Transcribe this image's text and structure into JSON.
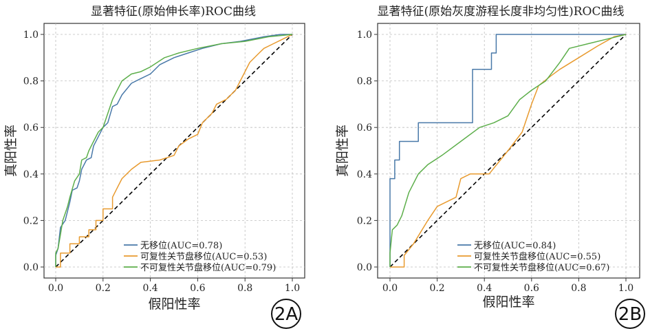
{
  "chart_data": [
    {
      "type": "line",
      "panel_tag": "2A",
      "title": "显著特征(原始伸长率)ROC曲线",
      "xlabel": "假阳性率",
      "ylabel": "真阳性率",
      "xlim": [
        0,
        1
      ],
      "ylim": [
        0,
        1
      ],
      "xticks": [
        "0.0",
        "0.2",
        "0.4",
        "0.6",
        "0.8",
        "1.0"
      ],
      "yticks": [
        "0.0",
        "0.2",
        "0.4",
        "0.6",
        "0.8",
        "1.0"
      ],
      "grid": true,
      "legend_position": "lower-right",
      "diagonal": true,
      "series": [
        {
          "name": "无移位(AUC=0.78)",
          "color": "#4878a8",
          "points": [
            [
              0,
              0
            ],
            [
              0,
              0.05
            ],
            [
              0.01,
              0.08
            ],
            [
              0.02,
              0.17
            ],
            [
              0.04,
              0.2
            ],
            [
              0.05,
              0.24
            ],
            [
              0.06,
              0.28
            ],
            [
              0.07,
              0.33
            ],
            [
              0.09,
              0.34
            ],
            [
              0.1,
              0.37
            ],
            [
              0.11,
              0.42
            ],
            [
              0.13,
              0.46
            ],
            [
              0.15,
              0.47
            ],
            [
              0.16,
              0.52
            ],
            [
              0.18,
              0.56
            ],
            [
              0.2,
              0.6
            ],
            [
              0.22,
              0.62
            ],
            [
              0.24,
              0.69
            ],
            [
              0.26,
              0.7
            ],
            [
              0.28,
              0.74
            ],
            [
              0.32,
              0.79
            ],
            [
              0.36,
              0.81
            ],
            [
              0.4,
              0.83
            ],
            [
              0.44,
              0.87
            ],
            [
              0.5,
              0.9
            ],
            [
              0.56,
              0.92
            ],
            [
              0.62,
              0.94
            ],
            [
              0.7,
              0.96
            ],
            [
              0.78,
              0.97
            ],
            [
              0.88,
              0.99
            ],
            [
              0.95,
              1.0
            ],
            [
              1.0,
              1.0
            ]
          ]
        },
        {
          "name": "可复性关节盘移位(AUC=0.53)",
          "color": "#e89a2e",
          "points": [
            [
              0,
              0
            ],
            [
              0.02,
              0
            ],
            [
              0.02,
              0.06
            ],
            [
              0.06,
              0.06
            ],
            [
              0.06,
              0.1
            ],
            [
              0.1,
              0.1
            ],
            [
              0.1,
              0.13
            ],
            [
              0.14,
              0.13
            ],
            [
              0.14,
              0.16
            ],
            [
              0.17,
              0.16
            ],
            [
              0.17,
              0.2
            ],
            [
              0.2,
              0.2
            ],
            [
              0.2,
              0.25
            ],
            [
              0.24,
              0.25
            ],
            [
              0.24,
              0.3
            ],
            [
              0.26,
              0.34
            ],
            [
              0.28,
              0.38
            ],
            [
              0.32,
              0.42
            ],
            [
              0.36,
              0.45
            ],
            [
              0.44,
              0.46
            ],
            [
              0.5,
              0.48
            ],
            [
              0.52,
              0.52
            ],
            [
              0.56,
              0.55
            ],
            [
              0.6,
              0.57
            ],
            [
              0.62,
              0.62
            ],
            [
              0.66,
              0.66
            ],
            [
              0.68,
              0.7
            ],
            [
              0.72,
              0.72
            ],
            [
              0.76,
              0.76
            ],
            [
              0.78,
              0.8
            ],
            [
              0.82,
              0.88
            ],
            [
              0.86,
              0.92
            ],
            [
              0.88,
              0.94
            ],
            [
              0.92,
              0.96
            ],
            [
              0.96,
              0.98
            ],
            [
              1.0,
              1.0
            ]
          ]
        },
        {
          "name": "不可复性关节盘移位(AUC=0.79)",
          "color": "#5cae4a",
          "points": [
            [
              0,
              0
            ],
            [
              0,
              0.06
            ],
            [
              0.01,
              0.08
            ],
            [
              0.02,
              0.14
            ],
            [
              0.03,
              0.2
            ],
            [
              0.05,
              0.26
            ],
            [
              0.06,
              0.3
            ],
            [
              0.08,
              0.37
            ],
            [
              0.1,
              0.4
            ],
            [
              0.11,
              0.46
            ],
            [
              0.13,
              0.47
            ],
            [
              0.14,
              0.5
            ],
            [
              0.16,
              0.54
            ],
            [
              0.18,
              0.58
            ],
            [
              0.2,
              0.6
            ],
            [
              0.22,
              0.66
            ],
            [
              0.24,
              0.72
            ],
            [
              0.26,
              0.76
            ],
            [
              0.28,
              0.8
            ],
            [
              0.32,
              0.83
            ],
            [
              0.36,
              0.84
            ],
            [
              0.4,
              0.86
            ],
            [
              0.46,
              0.9
            ],
            [
              0.52,
              0.92
            ],
            [
              0.6,
              0.94
            ],
            [
              0.7,
              0.96
            ],
            [
              0.8,
              0.97
            ],
            [
              0.9,
              0.99
            ],
            [
              1.0,
              1.0
            ]
          ]
        }
      ]
    },
    {
      "type": "line",
      "panel_tag": "2B",
      "title": "显著特征(原始灰度游程长度非均匀性)ROC曲线",
      "xlabel": "假阳性率",
      "ylabel": "真阳性率",
      "xlim": [
        0,
        1
      ],
      "ylim": [
        0,
        1
      ],
      "xticks": [
        "0.0",
        "0.2",
        "0.4",
        "0.6",
        "0.8",
        "1.0"
      ],
      "yticks": [
        "0.0",
        "0.2",
        "0.4",
        "0.6",
        "0.8",
        "1.0"
      ],
      "grid": true,
      "legend_position": "lower-right",
      "diagonal": true,
      "series": [
        {
          "name": "无移位(AUC=0.84)",
          "color": "#4878a8",
          "points": [
            [
              0,
              0
            ],
            [
              0,
              0.38
            ],
            [
              0.02,
              0.38
            ],
            [
              0.02,
              0.46
            ],
            [
              0.04,
              0.46
            ],
            [
              0.04,
              0.54
            ],
            [
              0.12,
              0.54
            ],
            [
              0.12,
              0.62
            ],
            [
              0.35,
              0.62
            ],
            [
              0.35,
              0.85
            ],
            [
              0.43,
              0.85
            ],
            [
              0.43,
              0.92
            ],
            [
              0.45,
              0.92
            ],
            [
              0.45,
              1.0
            ],
            [
              1.0,
              1.0
            ]
          ]
        },
        {
          "name": "可复性关节盘移位(AUC=0.55)",
          "color": "#e89a2e",
          "points": [
            [
              0,
              0
            ],
            [
              0.06,
              0
            ],
            [
              0.06,
              0.05
            ],
            [
              0.1,
              0.1
            ],
            [
              0.16,
              0.2
            ],
            [
              0.2,
              0.26
            ],
            [
              0.28,
              0.3
            ],
            [
              0.3,
              0.38
            ],
            [
              0.34,
              0.4
            ],
            [
              0.42,
              0.4
            ],
            [
              0.5,
              0.5
            ],
            [
              0.56,
              0.58
            ],
            [
              0.6,
              0.7
            ],
            [
              0.63,
              0.78
            ],
            [
              0.68,
              0.82
            ],
            [
              0.72,
              0.85
            ],
            [
              0.8,
              0.9
            ],
            [
              0.88,
              0.95
            ],
            [
              0.95,
              0.99
            ],
            [
              1.0,
              1.0
            ]
          ]
        },
        {
          "name": "不可复性关节盘移位(AUC=0.67)",
          "color": "#5cae4a",
          "points": [
            [
              0,
              0
            ],
            [
              0,
              0.06
            ],
            [
              0.01,
              0.16
            ],
            [
              0.03,
              0.18
            ],
            [
              0.05,
              0.22
            ],
            [
              0.08,
              0.32
            ],
            [
              0.1,
              0.36
            ],
            [
              0.12,
              0.4
            ],
            [
              0.16,
              0.44
            ],
            [
              0.22,
              0.48
            ],
            [
              0.3,
              0.54
            ],
            [
              0.38,
              0.6
            ],
            [
              0.44,
              0.62
            ],
            [
              0.5,
              0.65
            ],
            [
              0.55,
              0.72
            ],
            [
              0.6,
              0.76
            ],
            [
              0.66,
              0.8
            ],
            [
              0.72,
              0.88
            ],
            [
              0.76,
              0.94
            ],
            [
              0.84,
              0.96
            ],
            [
              0.92,
              0.98
            ],
            [
              1.0,
              1.0
            ]
          ]
        }
      ]
    }
  ]
}
